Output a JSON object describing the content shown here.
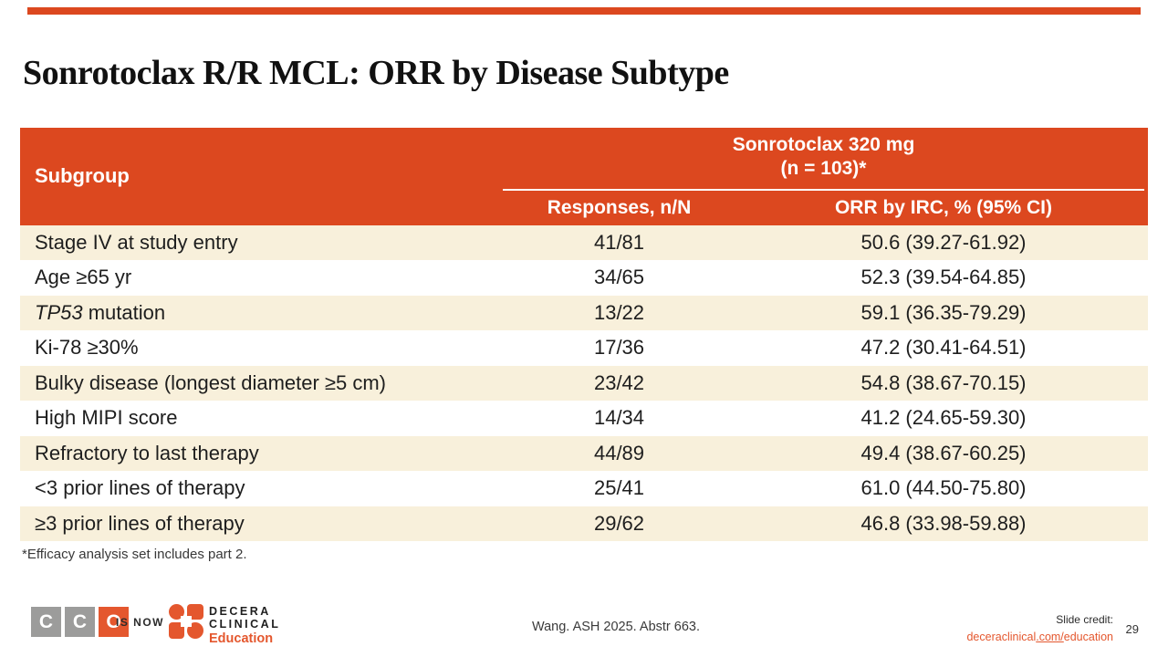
{
  "colors": {
    "accent_orange": "#DC481F",
    "row_cream": "#F8F0DB",
    "logo_orange": "#E4572E",
    "logo_gray": "#9C9C9B"
  },
  "title": "Sonrotoclax R/R MCL: ORR by Disease Subtype",
  "table": {
    "subgroup_header": "Subgroup",
    "group_header_line1": "Sonrotoclax 320 mg",
    "group_header_line2": "(n = 103)*",
    "responses_header": "Responses, n/N",
    "orr_header": "ORR by IRC, % (95% CI)",
    "rows": [
      {
        "em": "",
        "label": "Stage IV at study entry",
        "n": "41/81",
        "orr": "50.6 (39.27-61.92)"
      },
      {
        "em": "",
        "label": "Age ≥65 yr",
        "n": "34/65",
        "orr": "52.3 (39.54-64.85)"
      },
      {
        "em": "TP53",
        "label": " mutation",
        "n": "13/22",
        "orr": "59.1 (36.35-79.29)"
      },
      {
        "em": "",
        "label": "Ki-78 ≥30%",
        "n": "17/36",
        "orr": "47.2 (30.41-64.51)"
      },
      {
        "em": "",
        "label": "Bulky disease (longest diameter ≥5 cm)",
        "n": "23/42",
        "orr": "54.8 (38.67-70.15)"
      },
      {
        "em": "",
        "label": "High MIPI score",
        "n": "14/34",
        "orr": "41.2 (24.65-59.30)"
      },
      {
        "em": "",
        "label": "Refractory to last therapy",
        "n": "44/89",
        "orr": "49.4 (38.67-60.25)"
      },
      {
        "em": "",
        "label": "<3 prior lines of therapy",
        "n": "25/41",
        "orr": "61.0 (44.50-75.80)"
      },
      {
        "em": "",
        "label": "≥3 prior lines of therapy",
        "n": "29/62",
        "orr": "46.8 (33.98-59.88)"
      }
    ]
  },
  "footnote": "*Efficacy analysis set includes part 2.",
  "footer": {
    "cco_letters": [
      "C",
      "C",
      "O"
    ],
    "is_now": "IS NOW",
    "decera_line1": "DECERA",
    "decera_line2": "CLINICAL",
    "decera_education": "Education",
    "reference": "Wang. ASH 2025. Abstr 663.",
    "credit_label": "Slide credit:",
    "credit_link_pre": "deceraclinical",
    "credit_link_mid": ".com/",
    "credit_link_post": "education",
    "page_number": "29"
  }
}
